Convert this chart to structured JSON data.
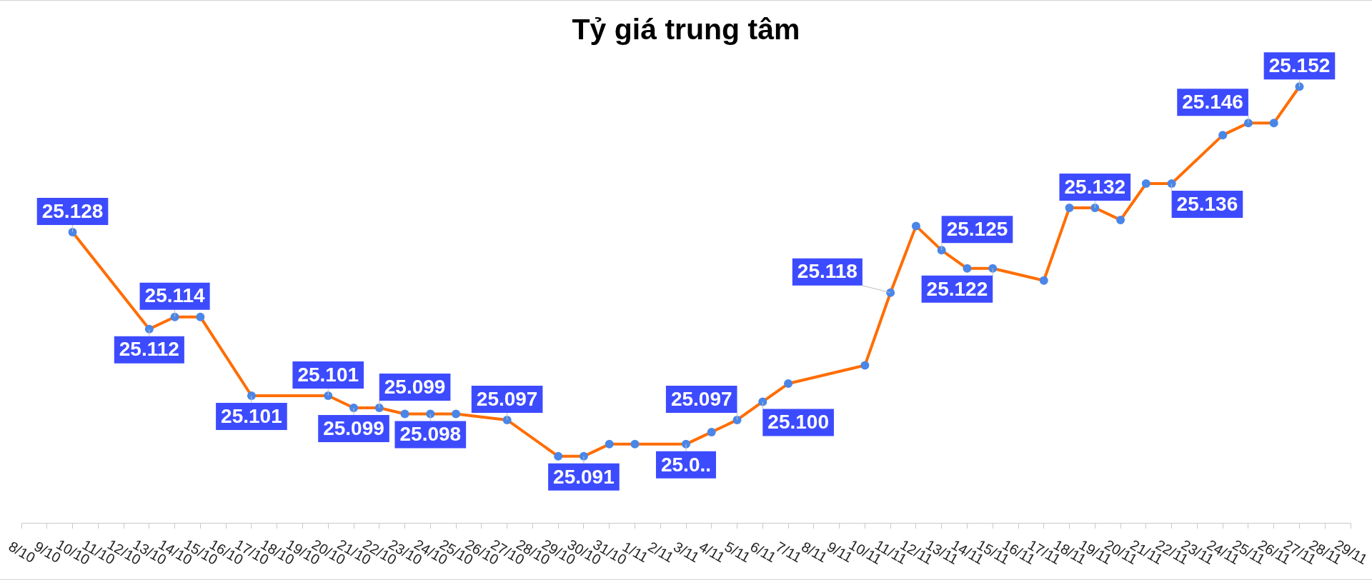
{
  "chart_data": {
    "type": "line",
    "title": "Tỷ giá trung tâm",
    "x": [
      "--10-10",
      "--10-13",
      "--10-14",
      "--10-15",
      "--10-17",
      "--10-20",
      "--10-21",
      "--10-22",
      "--10-23",
      "--10-24",
      "--10-25",
      "--10-27",
      "--10-29",
      "--10-30",
      "--10-31",
      "--11-01",
      "--11-03",
      "--11-04",
      "--11-05",
      "--11-06",
      "--11-07",
      "--11-10",
      "--11-11",
      "--11-12",
      "--11-13",
      "--11-14",
      "--11-15",
      "--11-17",
      "--11-18",
      "--11-19",
      "--11-20",
      "--11-21",
      "--11-22",
      "--11-24",
      "--11-25",
      "--11-26",
      "--11-27"
    ],
    "xlim": [
      "--10-08",
      "--11-29"
    ],
    "xticks": [
      {
        "value": "--10-08",
        "label": "8/10"
      },
      {
        "value": "--10-09",
        "label": "9/10"
      },
      {
        "value": "--10-10",
        "label": "10/10"
      },
      {
        "value": "--10-11",
        "label": "11/10"
      },
      {
        "value": "--10-12",
        "label": "12/10"
      },
      {
        "value": "--10-13",
        "label": "13/10"
      },
      {
        "value": "--10-14",
        "label": "14/10"
      },
      {
        "value": "--10-15",
        "label": "15/10"
      },
      {
        "value": "--10-16",
        "label": "16/10"
      },
      {
        "value": "--10-17",
        "label": "17/10"
      },
      {
        "value": "--10-18",
        "label": "18/10"
      },
      {
        "value": "--10-19",
        "label": "19/10"
      },
      {
        "value": "--10-20",
        "label": "20/10"
      },
      {
        "value": "--10-21",
        "label": "21/10"
      },
      {
        "value": "--10-22",
        "label": "22/10"
      },
      {
        "value": "--10-23",
        "label": "23/10"
      },
      {
        "value": "--10-24",
        "label": "24/10"
      },
      {
        "value": "--10-25",
        "label": "25/10"
      },
      {
        "value": "--10-26",
        "label": "26/10"
      },
      {
        "value": "--10-27",
        "label": "27/10"
      },
      {
        "value": "--10-28",
        "label": "28/10"
      },
      {
        "value": "--10-29",
        "label": "29/10"
      },
      {
        "value": "--10-30",
        "label": "30/10"
      },
      {
        "value": "--10-31",
        "label": "31/10"
      },
      {
        "value": "--11-01",
        "label": "1/11"
      },
      {
        "value": "--11-02",
        "label": "2/11"
      },
      {
        "value": "--11-03",
        "label": "3/11"
      },
      {
        "value": "--11-04",
        "label": "4/11"
      },
      {
        "value": "--11-05",
        "label": "5/11"
      },
      {
        "value": "--11-06",
        "label": "6/11"
      },
      {
        "value": "--11-07",
        "label": "7/11"
      },
      {
        "value": "--11-08",
        "label": "8/11"
      },
      {
        "value": "--11-09",
        "label": "9/11"
      },
      {
        "value": "--11-10",
        "label": "10/11"
      },
      {
        "value": "--11-11",
        "label": "11/11"
      },
      {
        "value": "--11-12",
        "label": "12/11"
      },
      {
        "value": "--11-13",
        "label": "13/11"
      },
      {
        "value": "--11-14",
        "label": "14/11"
      },
      {
        "value": "--11-15",
        "label": "15/11"
      },
      {
        "value": "--11-16",
        "label": "16/11"
      },
      {
        "value": "--11-17",
        "label": "17/11"
      },
      {
        "value": "--11-18",
        "label": "18/11"
      },
      {
        "value": "--11-19",
        "label": "19/11"
      },
      {
        "value": "--11-20",
        "label": "20/11"
      },
      {
        "value": "--11-21",
        "label": "21/11"
      },
      {
        "value": "--11-22",
        "label": "22/11"
      },
      {
        "value": "--11-23",
        "label": "23/11"
      },
      {
        "value": "--11-24",
        "label": "24/11"
      },
      {
        "value": "--11-25",
        "label": "25/11"
      },
      {
        "value": "--11-26",
        "label": "26/11"
      },
      {
        "value": "--11-27",
        "label": "27/11"
      },
      {
        "value": "--11-28",
        "label": "28/11"
      },
      {
        "value": "--11-29",
        "label": "29/11"
      }
    ],
    "series": [
      {
        "color": "#ff6d00",
        "values": [
          25.128,
          25.112,
          25.114,
          25.114,
          25.101,
          25.101,
          25.099,
          25.099,
          25.098,
          25.098,
          25.098,
          25.097,
          25.091,
          25.091,
          25.093,
          25.093,
          25.093,
          25.095,
          25.097,
          25.1,
          25.103,
          25.106,
          25.118,
          25.129,
          25.125,
          25.122,
          25.122,
          25.12,
          25.132,
          25.132,
          25.13,
          25.136,
          25.136,
          25.144,
          25.146,
          25.146,
          25.152
        ],
        "value_labels": [
          "25.128",
          "25.112",
          "25.114",
          null,
          "25.101",
          "25.101",
          "25.099",
          "25.099",
          null,
          "25.098",
          null,
          "25.097",
          null,
          "25.091",
          null,
          null,
          null,
          null,
          "25.097",
          "25.100",
          null,
          null,
          "25.118",
          null,
          "25.125",
          null,
          "25.122",
          null,
          null,
          "25.132",
          null,
          null,
          "25.136",
          null,
          "25.146",
          null,
          "25.152"
        ]
      }
    ],
    "annotations": [
      {
        "text": "25.0..",
        "x": "--11-03",
        "y": 25.093
      }
    ],
    "marker": "circle",
    "line_style": "solid"
  }
}
